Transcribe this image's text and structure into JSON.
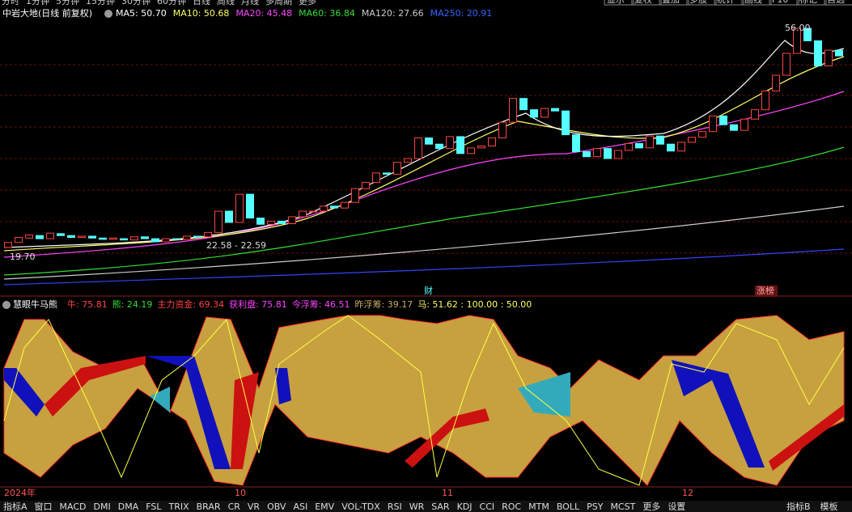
{
  "toolbar": {
    "left": [
      "分时",
      "1分钟",
      "5分钟",
      "15分钟",
      "30分钟",
      "60分钟",
      "日线",
      "周线",
      "月线",
      "多周期",
      "更多"
    ],
    "right": [
      "显示",
      "复权",
      "叠加",
      "多股",
      "统计",
      "画线",
      "F10",
      "标记",
      "自选"
    ]
  },
  "header": {
    "title": "中岩大地(日线 前复权)",
    "ma": [
      {
        "label": "MA5: 50.70",
        "color": "#ffffff"
      },
      {
        "label": "MA10: 50.68",
        "color": "#ffff66"
      },
      {
        "label": "MA20: 45.48",
        "color": "#ff44ff"
      },
      {
        "label": "MA60: 36.84",
        "color": "#33dd33"
      },
      {
        "label": "MA120: 27.66",
        "color": "#cccccc"
      },
      {
        "label": "MA250: 20.91",
        "color": "#3366ff"
      }
    ]
  },
  "price_chart": {
    "high_label": "56.00",
    "low_label": "19.70",
    "range_label": "22.58 - 22.59",
    "event_labels": [
      "财",
      "涨榜"
    ],
    "candles": [
      [
        21.0,
        21.8
      ],
      [
        21.8,
        22.6
      ],
      [
        22.5,
        23.0
      ],
      [
        22.9,
        22.4
      ],
      [
        22.4,
        23.3
      ],
      [
        23.2,
        22.9
      ],
      [
        22.9,
        22.6
      ],
      [
        22.6,
        22.8
      ],
      [
        22.8,
        22.5
      ],
      [
        22.5,
        22.3
      ],
      [
        22.3,
        22.5
      ],
      [
        22.4,
        22.2
      ],
      [
        22.2,
        22.7
      ],
      [
        22.7,
        22.4
      ],
      [
        22.4,
        21.9
      ],
      [
        21.9,
        22.4
      ],
      [
        22.4,
        22.3
      ],
      [
        22.3,
        22.8
      ],
      [
        22.8,
        22.7
      ],
      [
        22.7,
        23.4
      ],
      [
        23.4,
        26.8
      ],
      [
        26.8,
        25.0
      ],
      [
        25.0,
        29.5
      ],
      [
        29.5,
        25.7
      ],
      [
        25.7,
        24.7
      ],
      [
        24.7,
        25.2
      ],
      [
        25.2,
        24.8
      ],
      [
        24.8,
        25.9
      ],
      [
        25.9,
        26.8
      ],
      [
        26.8,
        26.8
      ],
      [
        26.8,
        27.6
      ],
      [
        27.6,
        27.3
      ],
      [
        27.3,
        28.2
      ],
      [
        28.2,
        30.4
      ],
      [
        30.4,
        31.4
      ],
      [
        31.4,
        32.9
      ],
      [
        32.9,
        32.7
      ],
      [
        32.7,
        34.6
      ],
      [
        34.6,
        35.2
      ],
      [
        35.2,
        38.5
      ],
      [
        38.5,
        37.5
      ],
      [
        37.5,
        36.8
      ],
      [
        36.8,
        38.7
      ],
      [
        38.7,
        36.0
      ],
      [
        36.0,
        36.9
      ],
      [
        36.9,
        37.2
      ],
      [
        37.2,
        38.5
      ],
      [
        38.5,
        41.0
      ],
      [
        41.0,
        44.8
      ],
      [
        44.8,
        43.0
      ],
      [
        43.0,
        41.8
      ],
      [
        41.8,
        43.2
      ],
      [
        43.2,
        42.8
      ],
      [
        42.8,
        39.0
      ],
      [
        39.0,
        36.3
      ],
      [
        36.3,
        35.5
      ],
      [
        35.5,
        36.8
      ],
      [
        36.8,
        35.2
      ],
      [
        35.2,
        36.5
      ],
      [
        36.5,
        37.6
      ],
      [
        37.6,
        36.9
      ],
      [
        36.9,
        38.8
      ],
      [
        38.8,
        37.5
      ],
      [
        37.5,
        36.4
      ],
      [
        36.4,
        37.8
      ],
      [
        37.8,
        38.6
      ],
      [
        38.6,
        39.5
      ],
      [
        39.5,
        42.0
      ],
      [
        42.0,
        40.6
      ],
      [
        40.6,
        39.7
      ],
      [
        39.7,
        41.5
      ],
      [
        41.5,
        43.0
      ],
      [
        43.0,
        46.0
      ],
      [
        46.0,
        48.5
      ],
      [
        48.5,
        52.0
      ],
      [
        52.0,
        56.0
      ],
      [
        56.0,
        54.0
      ],
      [
        54.0,
        50.0
      ],
      [
        50.0,
        52.5
      ],
      [
        52.5,
        51.6
      ]
    ]
  },
  "indicator": {
    "title": "慧眼牛马熊",
    "items": [
      {
        "label": "牛: 75.81",
        "color": "#ff4444"
      },
      {
        "label": "熊: 24.19",
        "color": "#33dd33"
      },
      {
        "label": "主力资金: 69.34",
        "color": "#ff4444"
      },
      {
        "label": "获利盘: 75.81",
        "color": "#ff44ff"
      },
      {
        "label": "今浮筹: 46.51",
        "color": "#ff44ff"
      },
      {
        "label": "昨浮筹: 39.17",
        "color": "#ccaa66"
      },
      {
        "label": "马: 51.62 : 100.00 : 50.00",
        "color": "#ffff66"
      }
    ]
  },
  "date_axis": [
    "2024年",
    "10",
    "11",
    "12"
  ],
  "tabs_left": [
    "指标A",
    "窗口",
    "MACD",
    "DMI",
    "DMA",
    "FSL",
    "TRIX",
    "BRAR",
    "CR",
    "VR",
    "OBV",
    "ASI",
    "EMV",
    "VOL-TDX",
    "RSI",
    "WR",
    "SAR",
    "KDJ",
    "CCI",
    "ROC",
    "MTM",
    "BOLL",
    "PSY",
    "MCST",
    "更多",
    "设置"
  ],
  "tabs_right": [
    "指标B",
    "模板"
  ]
}
